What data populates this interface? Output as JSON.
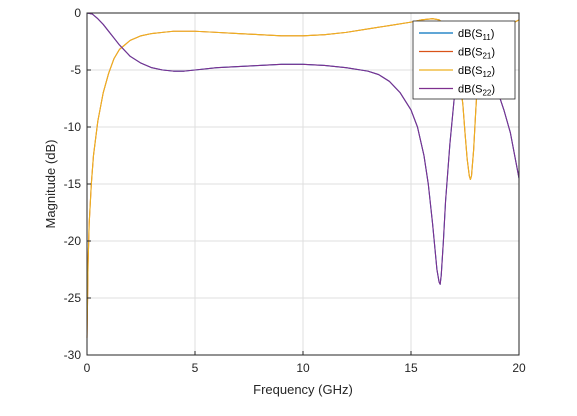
{
  "chart_data": {
    "type": "line",
    "xlabel": "Frequency (GHz)",
    "ylabel": "Magnitude (dB)",
    "xlim": [
      0,
      20
    ],
    "ylim": [
      -30,
      0
    ],
    "xticks": [
      0,
      5,
      10,
      15,
      20
    ],
    "yticks": [
      0,
      -5,
      -10,
      -15,
      -20,
      -25,
      -30
    ],
    "xtick_labels": [
      "0",
      "5",
      "10",
      "15",
      "20"
    ],
    "ytick_labels": [
      "0",
      "-5",
      "-10",
      "-15",
      "-20",
      "-25",
      "-30"
    ],
    "grid": true,
    "legend_position": "top-right",
    "series": [
      {
        "name": "dB(S11)",
        "legend_main": "dB(S",
        "legend_sub": "11",
        "color": "#0072BD",
        "x": [
          0,
          0.25,
          0.5,
          0.75,
          1,
          1.25,
          1.5,
          1.75,
          2,
          2.5,
          3,
          3.5,
          4,
          4.5,
          5,
          6,
          7,
          8,
          9,
          9.5,
          10,
          11,
          12,
          13,
          13.5,
          14,
          14.5,
          15,
          15.3,
          15.6,
          15.8,
          16,
          16.1,
          16.2,
          16.3,
          16.35,
          16.4,
          16.5,
          16.6,
          16.8,
          17,
          17.2,
          17.5,
          17.8,
          18,
          18.2,
          18.5,
          18.8,
          19,
          19.3,
          19.6,
          19.8,
          20
        ],
        "y": [
          0,
          -0.1,
          -0.5,
          -1.0,
          -1.6,
          -2.2,
          -2.8,
          -3.3,
          -3.8,
          -4.4,
          -4.8,
          -5.0,
          -5.1,
          -5.1,
          -5.0,
          -4.8,
          -4.7,
          -4.6,
          -4.5,
          -4.5,
          -4.5,
          -4.6,
          -4.8,
          -5.1,
          -5.4,
          -6.0,
          -7.0,
          -8.5,
          -10.0,
          -12.5,
          -15.0,
          -18.5,
          -20.5,
          -22.5,
          -23.6,
          -23.8,
          -23.0,
          -20.0,
          -16.5,
          -11.5,
          -7.5,
          -5.0,
          -3.6,
          -3.3,
          -3.4,
          -3.6,
          -4.2,
          -5.5,
          -6.8,
          -8.5,
          -10.5,
          -12.5,
          -14.5
        ]
      },
      {
        "name": "dB(S21)",
        "legend_main": "dB(S",
        "legend_sub": "21",
        "color": "#D95319",
        "x": [
          0,
          0.05,
          0.1,
          0.2,
          0.3,
          0.5,
          0.75,
          1,
          1.25,
          1.5,
          2,
          2.5,
          3,
          3.5,
          4,
          5,
          6,
          7,
          8,
          9,
          10,
          11,
          12,
          13,
          14,
          15,
          15.5,
          16,
          16.3,
          16.5,
          16.8,
          17,
          17.2,
          17.4,
          17.5,
          17.6,
          17.7,
          17.75,
          17.8,
          17.9,
          18,
          18.1,
          18.3,
          18.5,
          18.8,
          19,
          19.3,
          19.6,
          19.8,
          20
        ],
        "y": [
          -28.5,
          -22.0,
          -18.5,
          -15.0,
          -12.5,
          -9.5,
          -7.0,
          -5.3,
          -4.0,
          -3.2,
          -2.4,
          -2.0,
          -1.8,
          -1.7,
          -1.6,
          -1.6,
          -1.7,
          -1.8,
          -1.9,
          -2.0,
          -2.0,
          -1.9,
          -1.7,
          -1.4,
          -1.1,
          -0.8,
          -0.6,
          -0.5,
          -0.6,
          -0.9,
          -1.8,
          -3.0,
          -5.0,
          -8.0,
          -10.5,
          -12.8,
          -14.3,
          -14.6,
          -14.3,
          -12.0,
          -8.5,
          -5.5,
          -3.0,
          -2.0,
          -1.5,
          -1.4,
          -1.3,
          -1.1,
          -0.8,
          -0.6
        ]
      },
      {
        "name": "dB(S12)",
        "legend_main": "dB(S",
        "legend_sub": "12",
        "color": "#EDB120",
        "x": [
          0,
          0.05,
          0.1,
          0.2,
          0.3,
          0.5,
          0.75,
          1,
          1.25,
          1.5,
          2,
          2.5,
          3,
          3.5,
          4,
          5,
          6,
          7,
          8,
          9,
          10,
          11,
          12,
          13,
          14,
          15,
          15.5,
          16,
          16.3,
          16.5,
          16.8,
          17,
          17.2,
          17.4,
          17.5,
          17.6,
          17.7,
          17.75,
          17.8,
          17.9,
          18,
          18.1,
          18.3,
          18.5,
          18.8,
          19,
          19.3,
          19.6,
          19.8,
          20
        ],
        "y": [
          -28.5,
          -22.0,
          -18.5,
          -15.0,
          -12.5,
          -9.5,
          -7.0,
          -5.3,
          -4.0,
          -3.2,
          -2.4,
          -2.0,
          -1.8,
          -1.7,
          -1.6,
          -1.6,
          -1.7,
          -1.8,
          -1.9,
          -2.0,
          -2.0,
          -1.9,
          -1.7,
          -1.4,
          -1.1,
          -0.8,
          -0.6,
          -0.5,
          -0.6,
          -0.9,
          -1.8,
          -3.0,
          -5.0,
          -8.0,
          -10.5,
          -12.8,
          -14.3,
          -14.6,
          -14.3,
          -12.0,
          -8.5,
          -5.5,
          -3.0,
          -2.0,
          -1.5,
          -1.4,
          -1.3,
          -1.1,
          -0.8,
          -0.6
        ]
      },
      {
        "name": "dB(S22)",
        "legend_main": "dB(S",
        "legend_sub": "22",
        "color": "#7E2F8E",
        "x": [
          0,
          0.25,
          0.5,
          0.75,
          1,
          1.25,
          1.5,
          1.75,
          2,
          2.5,
          3,
          3.5,
          4,
          4.5,
          5,
          6,
          7,
          8,
          9,
          9.5,
          10,
          11,
          12,
          13,
          13.5,
          14,
          14.5,
          15,
          15.3,
          15.6,
          15.8,
          16,
          16.1,
          16.2,
          16.3,
          16.35,
          16.4,
          16.5,
          16.6,
          16.8,
          17,
          17.2,
          17.5,
          17.8,
          18,
          18.2,
          18.5,
          18.8,
          19,
          19.3,
          19.6,
          19.8,
          20
        ],
        "y": [
          0,
          -0.1,
          -0.5,
          -1.0,
          -1.6,
          -2.2,
          -2.8,
          -3.3,
          -3.8,
          -4.4,
          -4.8,
          -5.0,
          -5.1,
          -5.1,
          -5.0,
          -4.8,
          -4.7,
          -4.6,
          -4.5,
          -4.5,
          -4.5,
          -4.6,
          -4.8,
          -5.1,
          -5.4,
          -6.0,
          -7.0,
          -8.5,
          -10.0,
          -12.5,
          -15.0,
          -18.5,
          -20.5,
          -22.5,
          -23.6,
          -23.8,
          -23.0,
          -20.0,
          -16.5,
          -11.5,
          -7.5,
          -5.0,
          -3.6,
          -3.3,
          -3.4,
          -3.6,
          -4.2,
          -5.5,
          -6.8,
          -8.5,
          -10.5,
          -12.5,
          -14.5
        ]
      }
    ]
  }
}
